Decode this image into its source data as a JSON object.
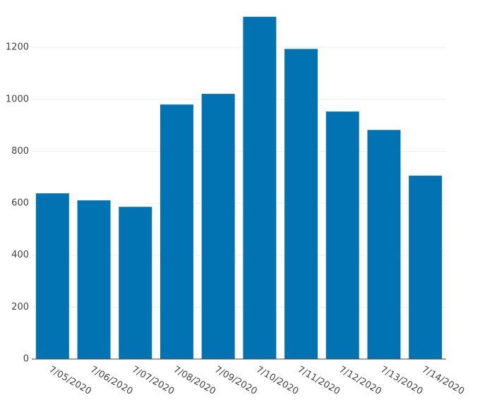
{
  "chart_data": {
    "type": "bar",
    "categories": [
      "7/05/2020",
      "7/06/2020",
      "7/07/2020",
      "7/08/2020",
      "7/09/2020",
      "7/10/2020",
      "7/11/2020",
      "7/12/2020",
      "7/13/2020",
      "7/14/2020"
    ],
    "values": [
      638,
      611,
      586,
      980,
      1021,
      1318,
      1194,
      953,
      882,
      706
    ],
    "color": "#0173b2",
    "ylim": [
      0,
      1320
    ],
    "yticks": [
      0,
      200,
      400,
      600,
      800,
      1000,
      1200
    ],
    "grid": true
  }
}
